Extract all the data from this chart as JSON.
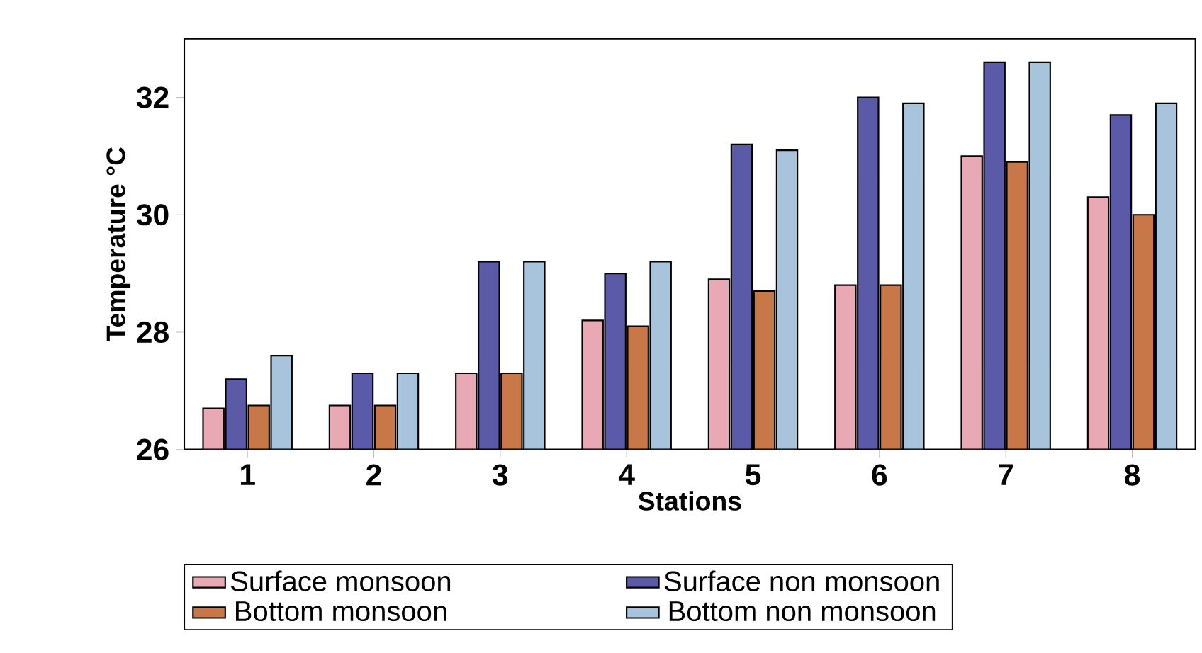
{
  "chart_data": {
    "type": "bar",
    "xlabel": "Stations",
    "ylabel": "Temperature °C",
    "categories": [
      "1",
      "2",
      "3",
      "4",
      "5",
      "6",
      "7",
      "8"
    ],
    "series": [
      {
        "name": "Surface monsoon",
        "color": "#e8a8b4",
        "values": [
          26.7,
          26.75,
          27.3,
          28.2,
          28.9,
          28.8,
          31.0,
          30.3
        ]
      },
      {
        "name": "Surface non monsoon",
        "color": "#5a5aa8",
        "values": [
          27.2,
          27.3,
          29.2,
          29.0,
          31.2,
          32.0,
          32.6,
          31.7
        ]
      },
      {
        "name": "Bottom monsoon",
        "color": "#c87848",
        "values": [
          26.75,
          26.75,
          27.3,
          28.1,
          28.7,
          28.8,
          30.9,
          30.0
        ]
      },
      {
        "name": "Bottom non monsoon",
        "color": "#a8c4dc",
        "values": [
          27.6,
          27.3,
          29.2,
          29.2,
          31.1,
          31.9,
          32.6,
          31.9
        ]
      }
    ],
    "ylim": [
      26,
      33
    ],
    "yticks": [
      26,
      28,
      30,
      32
    ],
    "legend": "bottom"
  }
}
